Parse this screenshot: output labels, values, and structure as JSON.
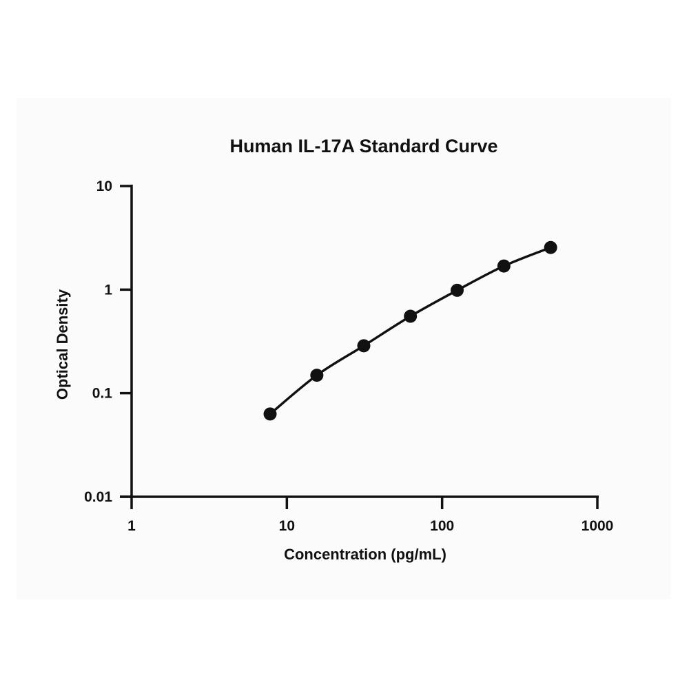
{
  "chart_data": {
    "type": "line",
    "title": "Human IL-17A Standard Curve",
    "xlabel": "Concentration (pg/mL)",
    "ylabel": "Optical Density",
    "x_scale": "log",
    "y_scale": "log",
    "xlim": [
      1,
      1000
    ],
    "ylim": [
      0.01,
      10
    ],
    "x_ticks": [
      1,
      10,
      100,
      1000
    ],
    "x_tick_labels": [
      "1",
      "10",
      "100",
      "1000"
    ],
    "y_ticks": [
      0.01,
      0.1,
      1,
      10
    ],
    "y_tick_labels": [
      "0.01",
      "0.1",
      "1",
      "10"
    ],
    "grid": false,
    "legend": "none",
    "series": [
      {
        "x": [
          7.8,
          15.6,
          31.3,
          62.5,
          125,
          250,
          500
        ],
        "y": [
          0.063,
          0.149,
          0.287,
          0.553,
          0.985,
          1.69,
          2.55
        ],
        "color": "#111111"
      }
    ]
  }
}
